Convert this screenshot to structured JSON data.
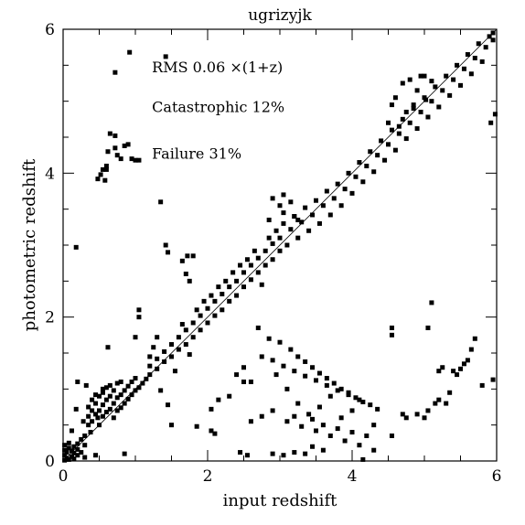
{
  "chart_data": {
    "type": "scatter",
    "title": "ugrizyjk",
    "xlabel": "input redshift",
    "ylabel": "photometric redshift",
    "xlim": [
      0,
      6
    ],
    "ylim": [
      0,
      6
    ],
    "x_ticks": [
      0,
      2,
      4,
      6
    ],
    "y_ticks": [
      0,
      2,
      4,
      6
    ],
    "x_tick_labels": [
      "0",
      "2",
      "4",
      "6"
    ],
    "y_tick_labels": [
      "0",
      "2",
      "4",
      "6"
    ],
    "grid": false,
    "reference_line": {
      "from": [
        0,
        0
      ],
      "to": [
        6,
        6
      ]
    },
    "annotations": [
      {
        "text": "RMS 0.06 ×(1+z)",
        "x": 1.23,
        "y": 5.4
      },
      {
        "text": "Catastrophic 12%",
        "x": 1.23,
        "y": 4.85
      },
      {
        "text": "Failure 31%",
        "x": 1.23,
        "y": 4.2
      }
    ],
    "marker_color": "#000000",
    "points": [
      [
        0.02,
        0.01
      ],
      [
        0.02,
        0.08
      ],
      [
        0.02,
        0.15
      ],
      [
        0.02,
        0.22
      ],
      [
        0.05,
        0.04
      ],
      [
        0.05,
        0.12
      ],
      [
        0.08,
        0.02
      ],
      [
        0.08,
        0.18
      ],
      [
        0.08,
        0.25
      ],
      [
        0.12,
        0.06
      ],
      [
        0.12,
        0.14
      ],
      [
        0.15,
        0.03
      ],
      [
        0.15,
        0.11
      ],
      [
        0.15,
        0.2
      ],
      [
        0.2,
        0.08
      ],
      [
        0.2,
        0.16
      ],
      [
        0.2,
        0.24
      ],
      [
        0.25,
        0.12
      ],
      [
        0.25,
        0.3
      ],
      [
        0.3,
        0.05
      ],
      [
        0.3,
        0.22
      ],
      [
        0.3,
        0.35
      ],
      [
        0.18,
        2.97
      ],
      [
        0.12,
        0.42
      ],
      [
        0.18,
        0.72
      ],
      [
        0.2,
        1.1
      ],
      [
        0.28,
        0.55
      ],
      [
        0.32,
        1.05
      ],
      [
        0.38,
        0.4
      ],
      [
        0.45,
        0.08
      ],
      [
        0.48,
        0.6
      ],
      [
        0.55,
        1.0
      ],
      [
        0.62,
        1.58
      ],
      [
        0.85,
        0.1
      ],
      [
        0.35,
        0.5
      ],
      [
        0.35,
        0.62
      ],
      [
        0.35,
        0.75
      ],
      [
        0.4,
        0.55
      ],
      [
        0.4,
        0.7
      ],
      [
        0.4,
        0.85
      ],
      [
        0.45,
        0.65
      ],
      [
        0.45,
        0.8
      ],
      [
        0.45,
        0.92
      ],
      [
        0.5,
        0.5
      ],
      [
        0.5,
        0.7
      ],
      [
        0.5,
        0.9
      ],
      [
        0.55,
        0.62
      ],
      [
        0.55,
        0.78
      ],
      [
        0.55,
        0.95
      ],
      [
        0.6,
        0.68
      ],
      [
        0.6,
        0.85
      ],
      [
        0.6,
        1.02
      ],
      [
        0.65,
        0.72
      ],
      [
        0.65,
        0.9
      ],
      [
        0.65,
        1.05
      ],
      [
        0.7,
        0.6
      ],
      [
        0.7,
        0.8
      ],
      [
        0.7,
        0.98
      ],
      [
        0.75,
        0.7
      ],
      [
        0.75,
        0.88
      ],
      [
        0.75,
        1.08
      ],
      [
        0.8,
        0.74
      ],
      [
        0.8,
        0.92
      ],
      [
        0.8,
        1.1
      ],
      [
        0.85,
        0.8
      ],
      [
        0.85,
        0.98
      ],
      [
        0.9,
        0.86
      ],
      [
        0.9,
        1.04
      ],
      [
        0.95,
        0.92
      ],
      [
        0.95,
        1.1
      ],
      [
        1.0,
        0.98
      ],
      [
        1.0,
        1.15
      ],
      [
        1.05,
        1.02
      ],
      [
        1.1,
        1.08
      ],
      [
        1.15,
        1.14
      ],
      [
        1.2,
        1.2
      ],
      [
        1.2,
        1.32
      ],
      [
        1.3,
        1.28
      ],
      [
        1.3,
        1.42
      ],
      [
        1.35,
        0.98
      ],
      [
        1.4,
        1.38
      ],
      [
        1.4,
        1.52
      ],
      [
        1.45,
        0.78
      ],
      [
        1.5,
        1.45
      ],
      [
        1.5,
        1.62
      ],
      [
        1.55,
        1.25
      ],
      [
        1.6,
        1.55
      ],
      [
        1.6,
        1.72
      ],
      [
        1.65,
        1.9
      ],
      [
        1.7,
        1.62
      ],
      [
        1.7,
        1.82
      ],
      [
        1.75,
        1.48
      ],
      [
        1.8,
        1.72
      ],
      [
        1.8,
        1.92
      ],
      [
        1.85,
        2.1
      ],
      [
        1.9,
        1.82
      ],
      [
        1.9,
        2.02
      ],
      [
        1.95,
        2.22
      ],
      [
        2.0,
        1.92
      ],
      [
        2.0,
        2.12
      ],
      [
        2.05,
        2.3
      ],
      [
        2.1,
        2.02
      ],
      [
        2.1,
        2.22
      ],
      [
        2.15,
        2.42
      ],
      [
        2.2,
        2.1
      ],
      [
        2.2,
        2.32
      ],
      [
        2.25,
        2.5
      ],
      [
        2.3,
        2.22
      ],
      [
        2.3,
        2.42
      ],
      [
        2.35,
        2.62
      ],
      [
        2.4,
        2.3
      ],
      [
        2.4,
        2.5
      ],
      [
        2.45,
        2.72
      ],
      [
        2.5,
        2.42
      ],
      [
        2.5,
        2.62
      ],
      [
        2.55,
        2.8
      ],
      [
        2.6,
        2.52
      ],
      [
        2.6,
        2.72
      ],
      [
        2.65,
        2.92
      ],
      [
        2.7,
        2.62
      ],
      [
        2.7,
        2.82
      ],
      [
        2.75,
        2.45
      ],
      [
        2.8,
        2.72
      ],
      [
        2.8,
        2.92
      ],
      [
        2.85,
        3.1
      ],
      [
        2.9,
        2.8
      ],
      [
        2.9,
        3.02
      ],
      [
        2.95,
        3.2
      ],
      [
        3.0,
        2.92
      ],
      [
        3.0,
        3.1
      ],
      [
        3.05,
        3.3
      ],
      [
        3.1,
        3.0
      ],
      [
        3.15,
        3.22
      ],
      [
        3.2,
        3.4
      ],
      [
        3.25,
        3.1
      ],
      [
        3.3,
        3.32
      ],
      [
        3.35,
        3.52
      ],
      [
        3.4,
        3.2
      ],
      [
        3.45,
        3.42
      ],
      [
        3.5,
        3.62
      ],
      [
        3.55,
        3.3
      ],
      [
        3.6,
        3.55
      ],
      [
        3.65,
        3.75
      ],
      [
        3.7,
        3.42
      ],
      [
        3.75,
        3.65
      ],
      [
        3.8,
        3.85
      ],
      [
        3.85,
        3.55
      ],
      [
        3.9,
        3.78
      ],
      [
        3.95,
        4.0
      ],
      [
        4.0,
        3.72
      ],
      [
        4.05,
        3.95
      ],
      [
        4.1,
        4.15
      ],
      [
        4.15,
        3.88
      ],
      [
        4.2,
        4.1
      ],
      [
        4.25,
        4.3
      ],
      [
        4.3,
        4.02
      ],
      [
        4.35,
        4.25
      ],
      [
        4.4,
        4.45
      ],
      [
        4.45,
        4.18
      ],
      [
        4.5,
        4.4
      ],
      [
        4.55,
        4.6
      ],
      [
        4.6,
        4.32
      ],
      [
        4.65,
        4.55
      ],
      [
        4.7,
        4.75
      ],
      [
        4.75,
        4.48
      ],
      [
        4.8,
        4.7
      ],
      [
        4.85,
        4.9
      ],
      [
        4.9,
        4.62
      ],
      [
        4.95,
        4.85
      ],
      [
        5.0,
        5.05
      ],
      [
        5.05,
        4.78
      ],
      [
        5.1,
        5.0
      ],
      [
        5.15,
        5.2
      ],
      [
        5.2,
        4.92
      ],
      [
        5.25,
        5.15
      ],
      [
        5.3,
        5.35
      ],
      [
        5.35,
        5.08
      ],
      [
        5.4,
        5.3
      ],
      [
        5.45,
        5.5
      ],
      [
        5.5,
        5.22
      ],
      [
        5.55,
        5.45
      ],
      [
        5.6,
        5.65
      ],
      [
        5.65,
        5.38
      ],
      [
        5.7,
        5.6
      ],
      [
        5.75,
        5.8
      ],
      [
        5.8,
        5.55
      ],
      [
        5.85,
        5.75
      ],
      [
        5.9,
        5.9
      ],
      [
        5.95,
        5.85
      ],
      [
        5.95,
        5.95
      ],
      [
        4.7,
        5.25
      ],
      [
        4.8,
        5.3
      ],
      [
        4.9,
        5.15
      ],
      [
        5.0,
        5.35
      ],
      [
        4.75,
        4.85
      ],
      [
        4.85,
        4.95
      ],
      [
        4.5,
        4.7
      ],
      [
        4.6,
        5.05
      ],
      [
        4.95,
        5.35
      ],
      [
        5.02,
        5.02
      ],
      [
        5.1,
        5.28
      ],
      [
        4.65,
        4.65
      ],
      [
        4.55,
        4.95
      ],
      [
        0.48,
        3.92
      ],
      [
        0.52,
        3.98
      ],
      [
        0.55,
        4.05
      ],
      [
        0.6,
        4.1
      ],
      [
        0.6,
        4.05
      ],
      [
        0.62,
        4.3
      ],
      [
        0.65,
        4.55
      ],
      [
        0.72,
        4.52
      ],
      [
        0.72,
        4.35
      ],
      [
        0.75,
        4.25
      ],
      [
        0.8,
        4.2
      ],
      [
        0.85,
        4.38
      ],
      [
        0.9,
        4.4
      ],
      [
        0.95,
        4.2
      ],
      [
        1.0,
        4.18
      ],
      [
        1.05,
        4.18
      ],
      [
        0.58,
        3.9
      ],
      [
        0.72,
        5.4
      ],
      [
        0.92,
        5.68
      ],
      [
        1.42,
        5.62
      ],
      [
        1.35,
        3.6
      ],
      [
        1.42,
        3.0
      ],
      [
        1.45,
        2.9
      ],
      [
        1.65,
        2.78
      ],
      [
        1.72,
        2.85
      ],
      [
        1.8,
        2.85
      ],
      [
        1.75,
        2.5
      ],
      [
        1.7,
        2.6
      ],
      [
        2.9,
        3.65
      ],
      [
        3.05,
        3.7
      ],
      [
        3.15,
        3.6
      ],
      [
        3.05,
        3.45
      ],
      [
        3.2,
        3.4
      ],
      [
        3.25,
        3.35
      ],
      [
        3.0,
        3.55
      ],
      [
        2.85,
        3.35
      ],
      [
        1.05,
        2.1
      ],
      [
        1.05,
        2.0
      ],
      [
        1.0,
        1.72
      ],
      [
        1.25,
        1.58
      ],
      [
        1.3,
        1.72
      ],
      [
        1.2,
        1.45
      ],
      [
        2.7,
        1.85
      ],
      [
        2.85,
        1.7
      ],
      [
        3.0,
        1.65
      ],
      [
        3.15,
        1.55
      ],
      [
        3.25,
        1.45
      ],
      [
        3.35,
        1.38
      ],
      [
        3.45,
        1.3
      ],
      [
        3.55,
        1.22
      ],
      [
        3.65,
        1.15
      ],
      [
        3.75,
        1.08
      ],
      [
        3.85,
        1.0
      ],
      [
        3.95,
        0.95
      ],
      [
        4.05,
        0.88
      ],
      [
        4.15,
        0.82
      ],
      [
        4.25,
        0.78
      ],
      [
        4.35,
        0.72
      ],
      [
        2.75,
        1.45
      ],
      [
        2.9,
        1.4
      ],
      [
        3.05,
        1.32
      ],
      [
        3.2,
        1.25
      ],
      [
        3.35,
        1.18
      ],
      [
        3.5,
        1.12
      ],
      [
        3.65,
        1.05
      ],
      [
        3.8,
        0.98
      ],
      [
        3.95,
        0.92
      ],
      [
        4.1,
        0.85
      ],
      [
        2.6,
        0.55
      ],
      [
        2.75,
        0.62
      ],
      [
        2.9,
        0.7
      ],
      [
        3.1,
        0.55
      ],
      [
        3.3,
        0.48
      ],
      [
        3.5,
        0.42
      ],
      [
        3.7,
        0.35
      ],
      [
        3.9,
        0.28
      ],
      [
        4.1,
        0.22
      ],
      [
        4.3,
        0.15
      ],
      [
        3.2,
        0.62
      ],
      [
        3.45,
        0.58
      ],
      [
        3.6,
        0.5
      ],
      [
        3.8,
        0.45
      ],
      [
        4.0,
        0.4
      ],
      [
        4.2,
        0.35
      ],
      [
        2.45,
        0.12
      ],
      [
        2.55,
        0.08
      ],
      [
        2.9,
        0.1
      ],
      [
        3.05,
        0.08
      ],
      [
        3.2,
        0.12
      ],
      [
        3.35,
        0.1
      ],
      [
        3.45,
        0.2
      ],
      [
        3.6,
        0.15
      ],
      [
        4.15,
        0.02
      ],
      [
        1.5,
        0.5
      ],
      [
        1.85,
        0.48
      ],
      [
        2.05,
        0.42
      ],
      [
        2.1,
        0.38
      ],
      [
        2.15,
        0.85
      ],
      [
        2.3,
        0.9
      ],
      [
        2.4,
        1.2
      ],
      [
        2.5,
        1.3
      ],
      [
        2.6,
        1.1
      ],
      [
        2.95,
        1.2
      ],
      [
        3.1,
        1.0
      ],
      [
        3.25,
        0.8
      ],
      [
        3.4,
        0.65
      ],
      [
        3.55,
        0.75
      ],
      [
        3.7,
        0.9
      ],
      [
        3.85,
        0.6
      ],
      [
        4.0,
        0.7
      ],
      [
        4.3,
        0.5
      ],
      [
        2.05,
        0.72
      ],
      [
        2.5,
        1.1
      ],
      [
        4.9,
        0.65
      ],
      [
        5.0,
        0.6
      ],
      [
        5.05,
        0.7
      ],
      [
        5.15,
        0.8
      ],
      [
        5.2,
        0.85
      ],
      [
        5.3,
        0.8
      ],
      [
        5.35,
        0.95
      ],
      [
        5.45,
        1.2
      ],
      [
        5.5,
        1.28
      ],
      [
        5.55,
        1.35
      ],
      [
        5.6,
        1.4
      ],
      [
        5.65,
        1.55
      ],
      [
        5.7,
        1.7
      ],
      [
        5.4,
        1.25
      ],
      [
        5.8,
        1.05
      ],
      [
        5.2,
        1.25
      ],
      [
        5.25,
        1.3
      ],
      [
        5.1,
        2.2
      ],
      [
        5.05,
        1.85
      ],
      [
        4.55,
        1.85
      ],
      [
        4.55,
        1.75
      ],
      [
        5.95,
        1.13
      ],
      [
        5.92,
        4.7
      ],
      [
        5.98,
        4.82
      ],
      [
        4.55,
        0.35
      ],
      [
        4.7,
        0.65
      ],
      [
        4.75,
        0.6
      ]
    ]
  }
}
